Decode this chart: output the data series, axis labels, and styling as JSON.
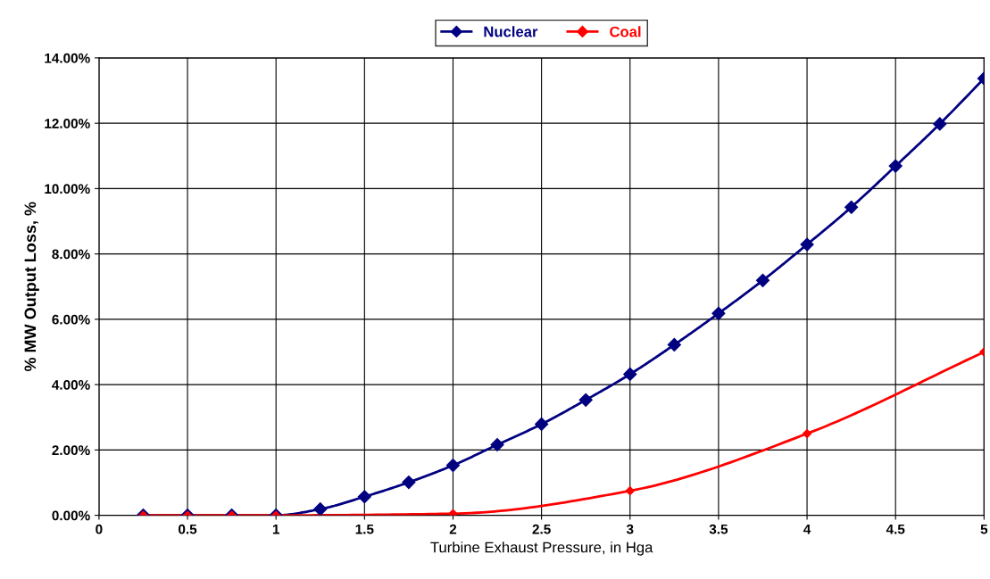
{
  "chart_data": {
    "type": "line",
    "xlabel": "Turbine Exhaust Pressure, in Hga",
    "ylabel": "% MW Output Loss, %",
    "xlim": [
      0,
      5
    ],
    "xticks": [
      0,
      0.5,
      1,
      1.5,
      2,
      2.5,
      3,
      3.5,
      4,
      4.5,
      5
    ],
    "ylim": [
      0,
      14
    ],
    "yticks": [
      {
        "value": 0,
        "label": "0.00%"
      },
      {
        "value": 2,
        "label": "2.00%"
      },
      {
        "value": 4,
        "label": "4.00%"
      },
      {
        "value": 6,
        "label": "6.00%"
      },
      {
        "value": 8,
        "label": "8.00%"
      },
      {
        "value": 10,
        "label": "10.00%"
      },
      {
        "value": 12,
        "label": "12.00%"
      },
      {
        "value": 14,
        "label": "14.00%"
      }
    ],
    "grid": true,
    "legend": "top",
    "marker": "diamond",
    "line_style": "solid",
    "series": [
      {
        "name": "Nuclear",
        "color": "#000080",
        "x": [
          0.25,
          0.5,
          0.75,
          1,
          1.25,
          1.5,
          1.75,
          2,
          2.25,
          2.5,
          2.75,
          3,
          3.25,
          3.5,
          3.75,
          4,
          4.25,
          4.5,
          4.75,
          5
        ],
        "values": [
          0,
          0,
          0,
          0,
          0.19,
          0.57,
          1.01,
          1.53,
          2.16,
          2.79,
          3.53,
          4.32,
          5.22,
          6.18,
          7.19,
          8.29,
          9.43,
          10.69,
          11.98,
          13.37
        ]
      },
      {
        "name": "Coal",
        "color": "#ff0000",
        "x": [
          0.25,
          0.5,
          0.75,
          1,
          2,
          3,
          4,
          5
        ],
        "values": [
          0,
          0,
          0,
          0,
          0.05,
          0.75,
          2.5,
          5.0
        ]
      }
    ]
  }
}
